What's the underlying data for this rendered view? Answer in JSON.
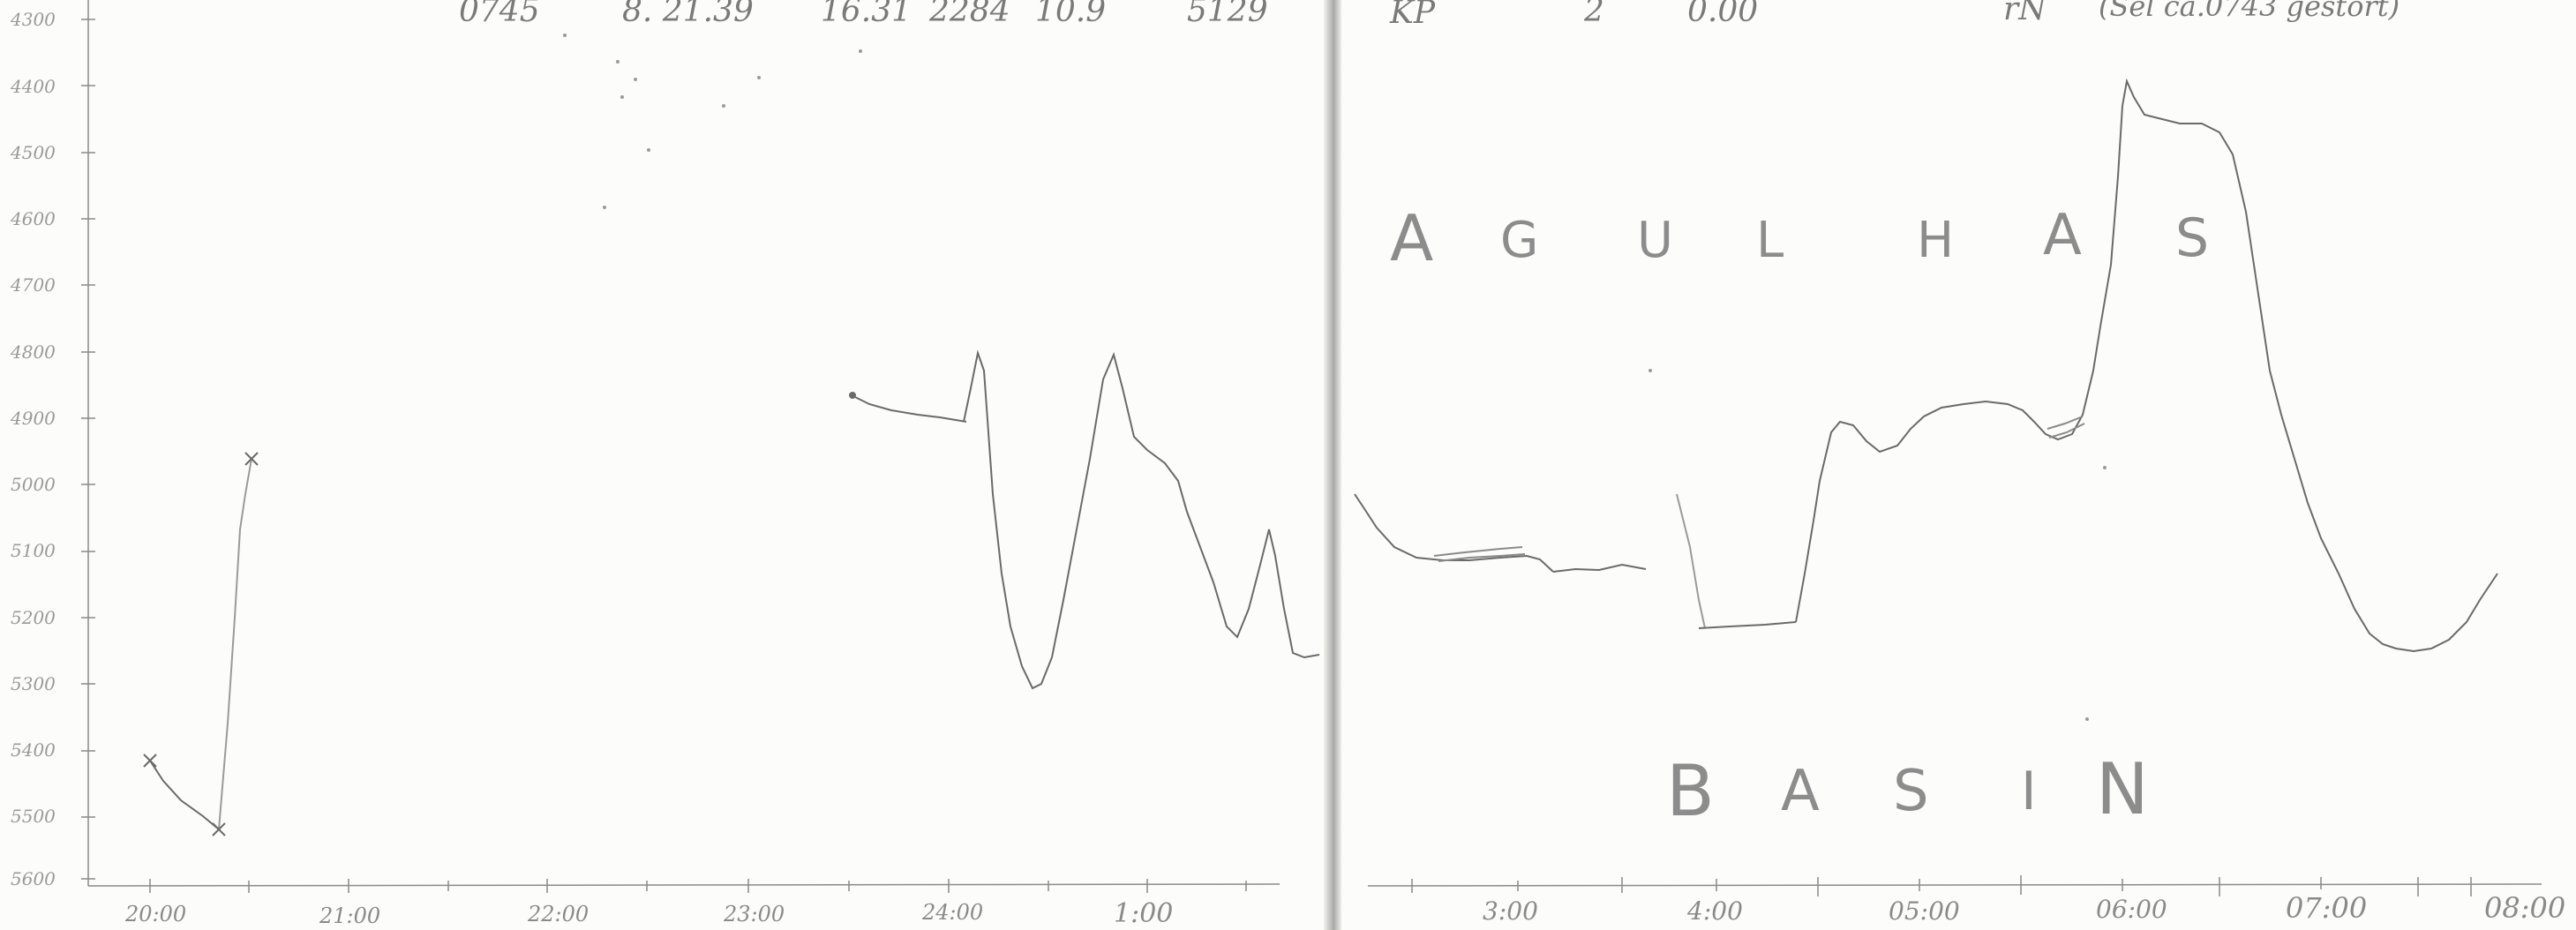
{
  "header_row_left": [
    "0745",
    "8. 21.39",
    "16.31",
    "2284",
    "10.9",
    "5129"
  ],
  "header_row_right": [
    "KP",
    "2",
    "0.00",
    "rN",
    "(Sel ca.0743 gestört)"
  ],
  "depth_labels": [
    "4300",
    "4400",
    "4500",
    "4600",
    "4700",
    "4800",
    "4900",
    "5000",
    "5100",
    "5200",
    "5300",
    "5400",
    "5500",
    "5600"
  ],
  "time_labels": [
    "20:00",
    "21:00",
    "22:00",
    "23:00",
    "24:00",
    "1:00",
    "3:00",
    "4:00",
    "05:00",
    "06:00",
    "07:00",
    "08:00"
  ],
  "basin_name_top": [
    "A",
    "G",
    "U",
    "L",
    "H",
    "A",
    "S"
  ],
  "basin_name_bottom": [
    "B",
    "A",
    "S",
    "I",
    "N"
  ],
  "colors": {
    "pencil": "#6a6a6a",
    "paper": "#fcfcfb",
    "gutter": "#b0b0ad"
  }
}
